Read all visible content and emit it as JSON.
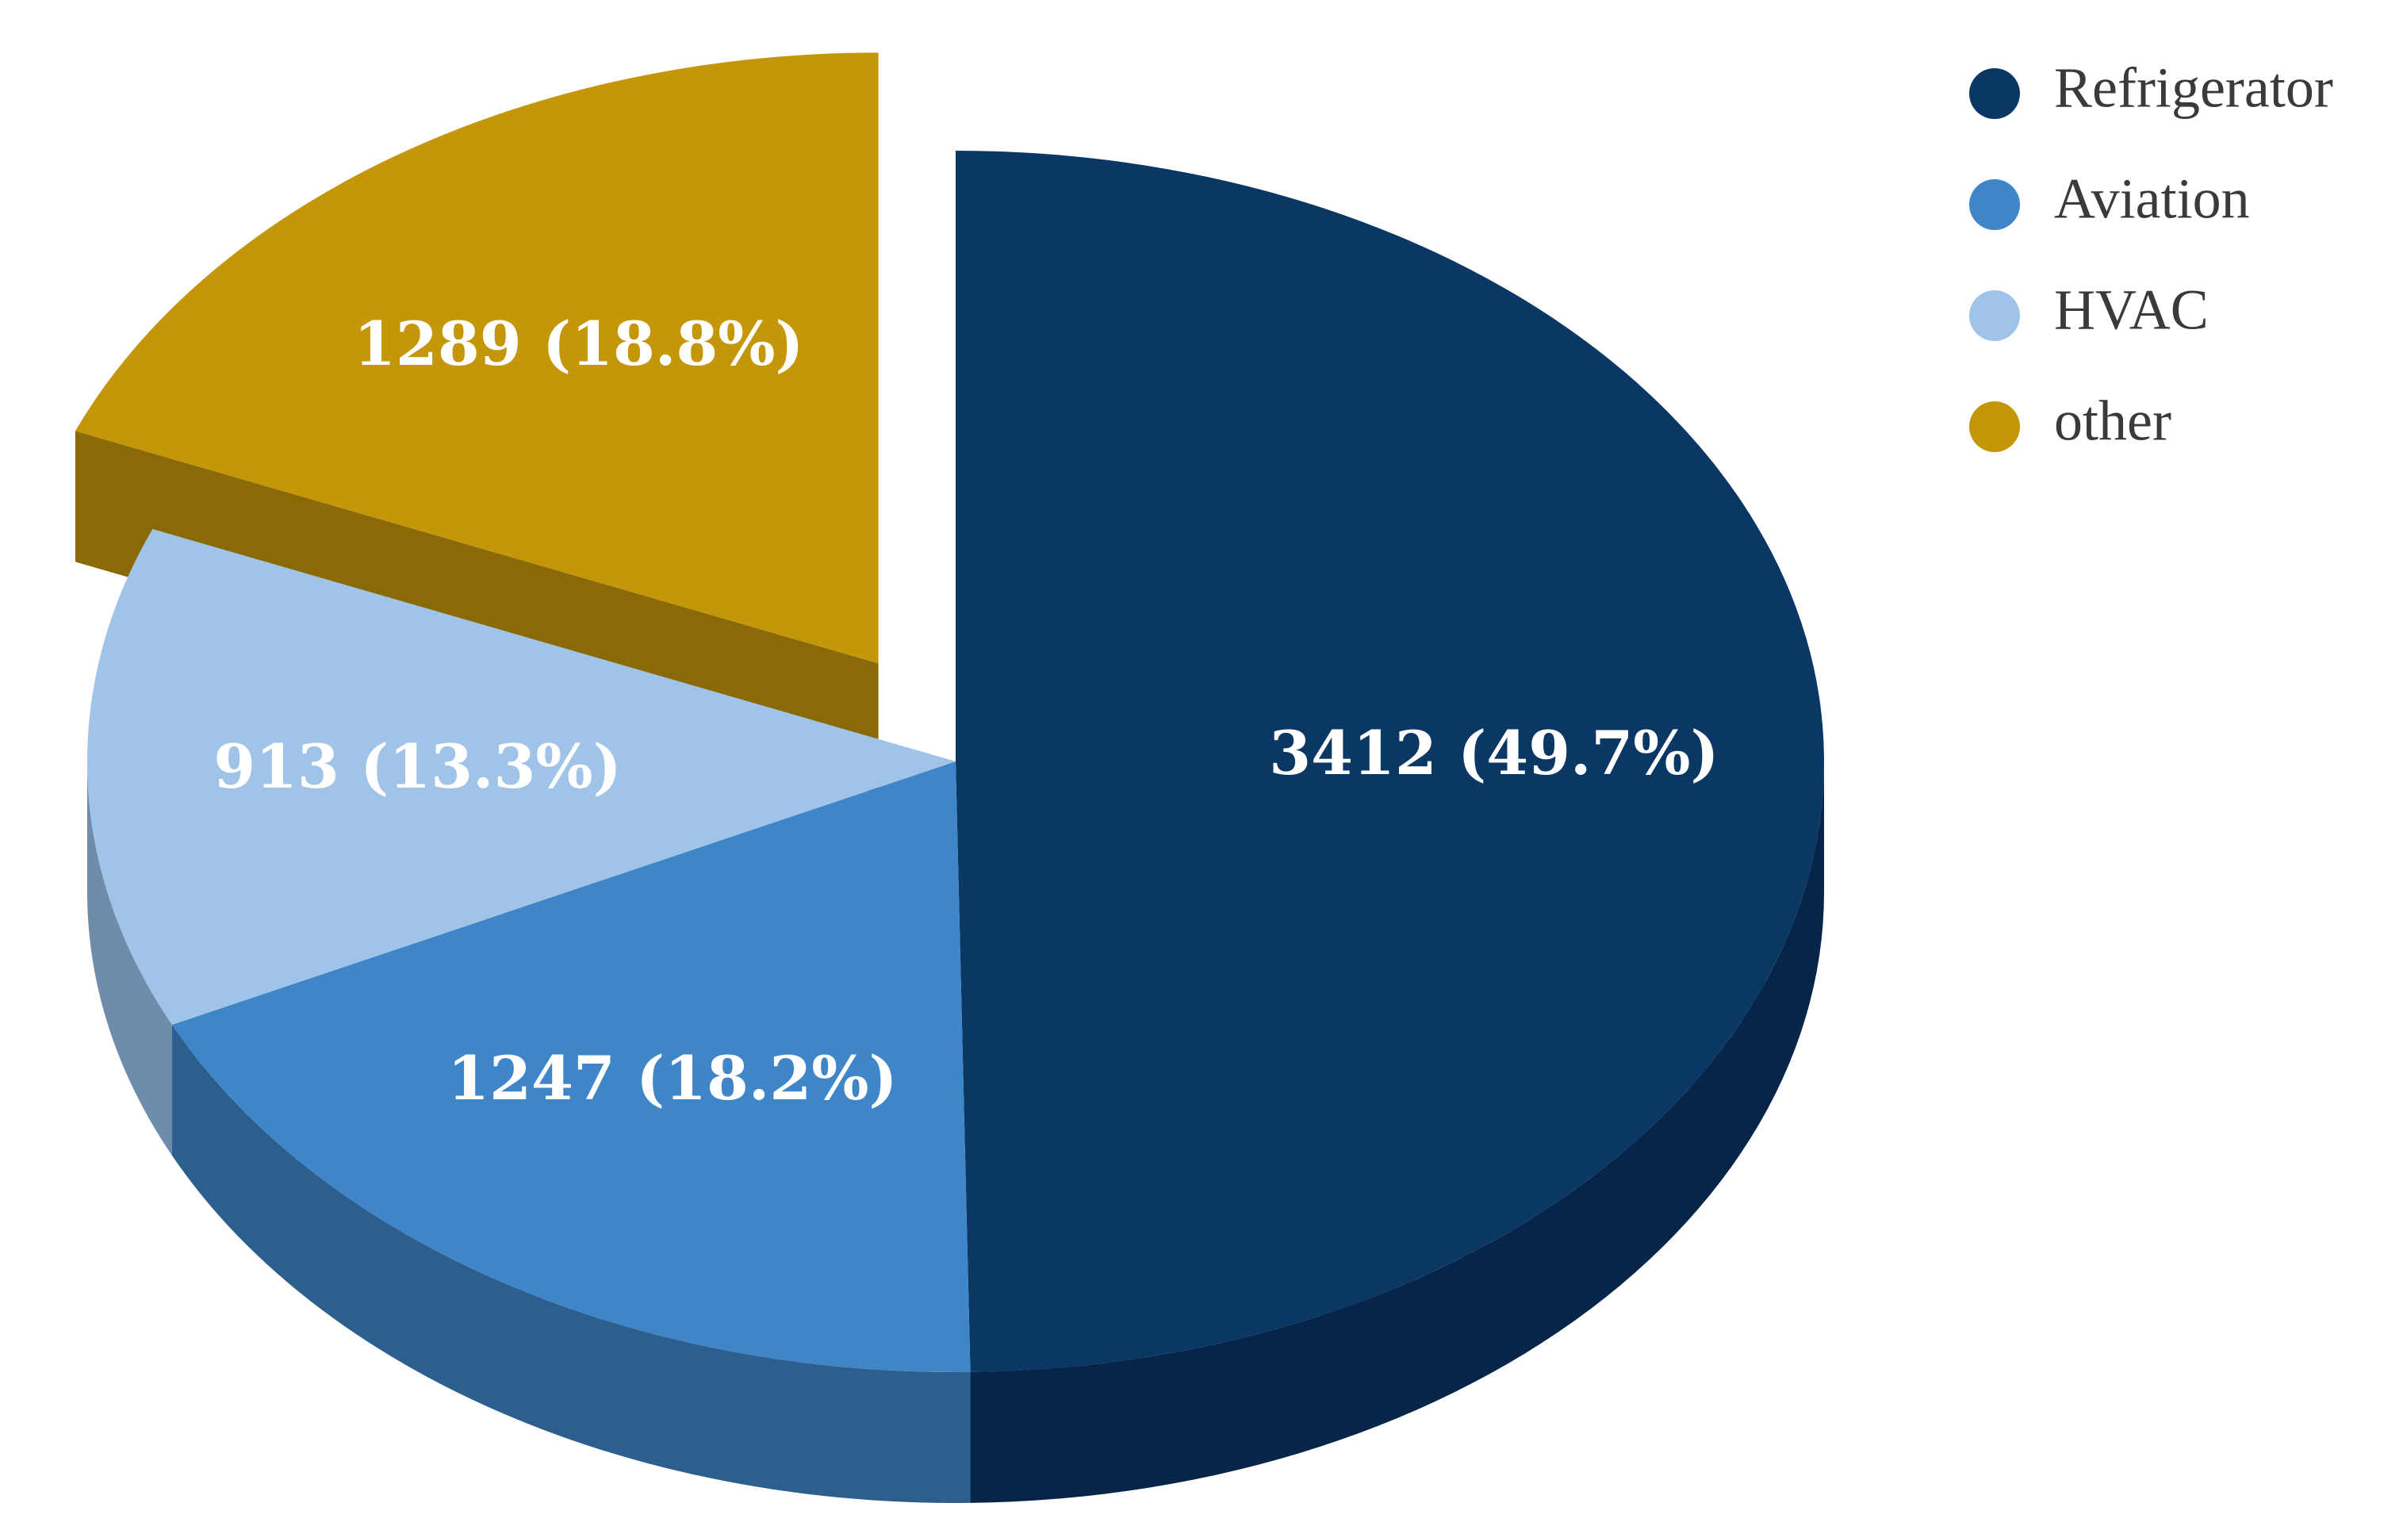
{
  "chart_data": {
    "type": "pie",
    "title": "",
    "three_d": true,
    "exploded_slice": "other",
    "legend_position": "top-right",
    "slices": [
      {
        "name": "Refrigerator",
        "value": 3412,
        "percent": 49.7,
        "label": "3412 (49.7%)",
        "color": "#0a3764",
        "side_color": "#072548"
      },
      {
        "name": "Aviation",
        "value": 1247,
        "percent": 18.2,
        "label": "1247 (18.2%)",
        "color": "#3f86c8",
        "side_color": "#2c5e8e"
      },
      {
        "name": "HVAC",
        "value": 913,
        "percent": 13.3,
        "label": "913 (13.3%)",
        "color": "#9fc4e8",
        "side_color": "#6f8cad"
      },
      {
        "name": "other",
        "value": 1289,
        "percent": 18.8,
        "label": "1289 (18.8%)",
        "color": "#c4960a",
        "side_color": "#8a6a07"
      }
    ]
  }
}
